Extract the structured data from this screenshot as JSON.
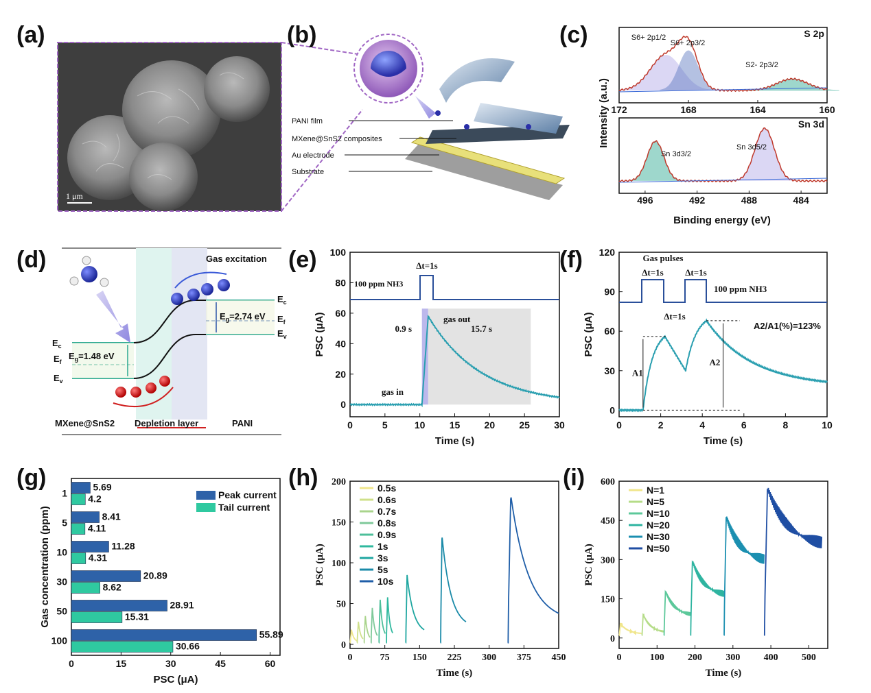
{
  "panels": {
    "a": {
      "label": "(a)",
      "scalebar": "1 μm"
    },
    "b": {
      "label": "(b)",
      "layers": [
        "PANI film",
        "MXene@SnS2 composites",
        "Au electrode",
        "Substrate"
      ]
    },
    "c": {
      "label": "(c)"
    },
    "d": {
      "label": "(d)",
      "gas": "Gas excitation",
      "eg_left": "1.48 eV",
      "eg_right": "2.74 eV",
      "left_material": "MXene@SnS2",
      "depletion": "Depletion layer",
      "right_material": "PANI"
    },
    "e": {
      "label": "(e)"
    },
    "f": {
      "label": "(f)"
    },
    "g": {
      "label": "(g)"
    },
    "h": {
      "label": "(h)"
    },
    "i": {
      "label": "(i)"
    }
  },
  "chart_data": [
    {
      "panel": "c-top",
      "type": "line",
      "title": "S 2p",
      "xlabel": "Binding energy (eV)",
      "ylabel": "Intensity (a.u.)",
      "xlim": [
        172,
        160
      ],
      "xticks": [
        "172",
        "168",
        "164",
        "160"
      ],
      "peaks": [
        {
          "label": "S6+ 2p1/2",
          "center": 169.2
        },
        {
          "label": "S6+ 2p3/2",
          "center": 168.0
        },
        {
          "label": "S2- 2p3/2",
          "center": 162.0
        }
      ]
    },
    {
      "panel": "c-bottom",
      "type": "line",
      "title": "Sn 3d",
      "xlabel": "Binding energy (eV)",
      "ylabel": "Intensity (a.u.)",
      "xlim": [
        498,
        482
      ],
      "xticks": [
        "496",
        "492",
        "488",
        "484"
      ],
      "peaks": [
        {
          "label": "Sn 3d3/2",
          "center": 495.2
        },
        {
          "label": "Sn 3d5/2",
          "center": 486.8
        }
      ]
    },
    {
      "panel": "e",
      "type": "line",
      "xlabel": "Time (s)",
      "ylabel": "PSC (μA)",
      "xlim": [
        0,
        30
      ],
      "ylim": [
        -8,
        100
      ],
      "xticks": [
        "0",
        "5",
        "10",
        "15",
        "20",
        "25",
        "30"
      ],
      "yticks": [
        "0",
        "20",
        "40",
        "60",
        "80",
        "100"
      ],
      "annotations": {
        "pulse": "Δt=1s",
        "gas": "100 ppm NH3",
        "gas_in": "gas in",
        "gas_out": "gas out",
        "rise": "0.9 s",
        "recovery": "15.7 s"
      },
      "points": [
        [
          0,
          0
        ],
        [
          10.3,
          0
        ],
        [
          10.8,
          40
        ],
        [
          11.2,
          58
        ],
        [
          12,
          52
        ],
        [
          14,
          40
        ],
        [
          17,
          28
        ],
        [
          20,
          19
        ],
        [
          23,
          12
        ],
        [
          26,
          7
        ],
        [
          30,
          1
        ]
      ]
    },
    {
      "panel": "f",
      "type": "line",
      "xlabel": "Time (s)",
      "ylabel": "PSC (μA)",
      "xlim": [
        0,
        10
      ],
      "ylim": [
        -5,
        120
      ],
      "xticks": [
        "0",
        "2",
        "4",
        "6",
        "8",
        "10"
      ],
      "yticks": [
        "0",
        "30",
        "60",
        "90",
        "120"
      ],
      "annotations": {
        "title": "Gas pulses",
        "pulse1": "Δt=1s",
        "gap": "Δt=1s",
        "pulse2": "Δt=1s",
        "gas": "100 ppm NH3",
        "ratio": "A2/A1(%)=123%",
        "a1": "A1",
        "a2": "A2"
      },
      "points": [
        [
          0,
          0
        ],
        [
          1.1,
          0
        ],
        [
          1.5,
          30
        ],
        [
          2.2,
          56
        ],
        [
          2.6,
          47
        ],
        [
          3.2,
          30
        ],
        [
          3.6,
          55
        ],
        [
          4.2,
          68
        ],
        [
          5,
          48
        ],
        [
          6,
          38
        ],
        [
          7,
          31
        ],
        [
          8,
          26
        ],
        [
          9,
          22
        ],
        [
          10,
          19
        ]
      ]
    },
    {
      "panel": "g",
      "type": "bar",
      "xlabel": "PSC (μA)",
      "ylabel": "Gas concentration (ppm)",
      "categories": [
        "1",
        "5",
        "10",
        "30",
        "50",
        "100"
      ],
      "xlim": [
        0,
        63
      ],
      "xticks": [
        "0",
        "15",
        "30",
        "45",
        "60"
      ],
      "series": [
        {
          "name": "Peak current",
          "color": "#2e62a8",
          "values": [
            5.69,
            8.41,
            11.28,
            20.89,
            28.91,
            55.89
          ],
          "labels": [
            "5.69",
            "8.41",
            "11.28",
            "20.89",
            "28.91",
            "55.89"
          ]
        },
        {
          "name": "Tail current",
          "color": "#2fc9a0",
          "values": [
            4.2,
            4.11,
            4.31,
            8.62,
            15.31,
            30.66
          ],
          "labels": [
            "4.2",
            "4.11",
            "4.31",
            "8.62",
            "15.31",
            "30.66"
          ]
        }
      ]
    },
    {
      "panel": "h",
      "type": "line",
      "xlabel": "Time (s)",
      "ylabel": "PSC (μA)",
      "xlim": [
        0,
        450
      ],
      "ylim": [
        -5,
        200
      ],
      "xticks": [
        "0",
        "75",
        "150",
        "225",
        "300",
        "375",
        "450"
      ],
      "yticks": [
        "0",
        "50",
        "100",
        "150",
        "200"
      ],
      "series": [
        {
          "name": "0.5s",
          "color": "#f0e68c",
          "start": 0,
          "peak": 18,
          "width": 15
        },
        {
          "name": "0.6s",
          "color": "#cfe08a",
          "start": 15,
          "peak": 28,
          "width": 13
        },
        {
          "name": "0.7s",
          "color": "#a9d48c",
          "start": 30,
          "peak": 35,
          "width": 13
        },
        {
          "name": "0.8s",
          "color": "#7fc99a",
          "start": 45,
          "peak": 45,
          "width": 14
        },
        {
          "name": "0.9s",
          "color": "#4dbf9a",
          "start": 62,
          "peak": 55,
          "width": 14
        },
        {
          "name": "1s",
          "color": "#2fb89e",
          "start": 78,
          "peak": 58,
          "width": 14
        },
        {
          "name": "3s",
          "color": "#1ea6a0",
          "start": 120,
          "peak": 85,
          "width": 40
        },
        {
          "name": "5s",
          "color": "#1a8aa8",
          "start": 195,
          "peak": 133,
          "width": 55
        },
        {
          "name": "10s",
          "color": "#1f5ea8",
          "start": 340,
          "peak": 183,
          "width": 110
        }
      ]
    },
    {
      "panel": "i",
      "type": "line",
      "xlabel": "Time (s)",
      "ylabel": "PSC (μA)",
      "xlim": [
        0,
        550
      ],
      "ylim": [
        -40,
        600
      ],
      "xticks": [
        "0",
        "100",
        "200",
        "300",
        "400",
        "500"
      ],
      "yticks": [
        "0",
        "150",
        "300",
        "450",
        "600"
      ],
      "series": [
        {
          "name": "N=1",
          "color": "#f0e68c",
          "start": 0,
          "peak": 55,
          "width": 58,
          "end": 15
        },
        {
          "name": "N=5",
          "color": "#b5dc88",
          "start": 60,
          "peak": 90,
          "width": 58,
          "end": 20
        },
        {
          "name": "N=10",
          "color": "#5cc89a",
          "start": 118,
          "peak": 180,
          "width": 70,
          "end": 85
        },
        {
          "name": "N=20",
          "color": "#2eb4a0",
          "start": 188,
          "peak": 295,
          "width": 88,
          "end": 160
        },
        {
          "name": "N=30",
          "color": "#1b8fb0",
          "start": 276,
          "peak": 465,
          "width": 106,
          "end": 290
        },
        {
          "name": "N=50",
          "color": "#1f4ea3",
          "start": 382,
          "peak": 575,
          "width": 152,
          "end": 350
        }
      ]
    }
  ]
}
